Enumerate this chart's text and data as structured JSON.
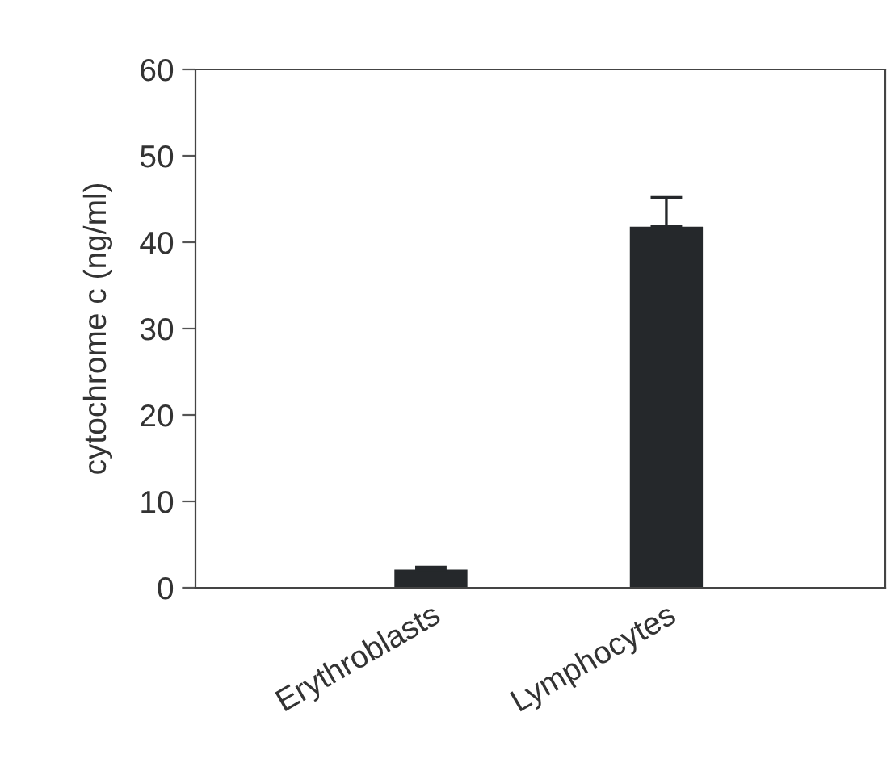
{
  "chart_data": {
    "type": "bar",
    "ylabel": "cytochrome c (ng/ml)",
    "categories": [
      "Erythroblasts",
      "Lymphocytes"
    ],
    "values": [
      2.1,
      41.8
    ],
    "errors": [
      [
        2.1,
        2.4
      ],
      [
        41.8,
        45.2
      ]
    ],
    "color": "#25282b",
    "ylim": [
      0,
      60
    ],
    "yticks": [
      0,
      10,
      20,
      30,
      40,
      50,
      60
    ],
    "grid": false
  }
}
